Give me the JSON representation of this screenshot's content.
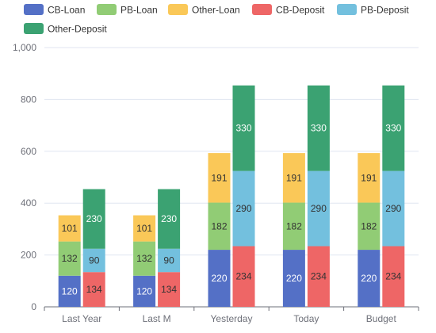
{
  "chart_data": {
    "type": "bar",
    "stacked": true,
    "categories": [
      "Last Year",
      "Last M",
      "Yesterday",
      "Today",
      "Budget"
    ],
    "stacks": [
      {
        "stack": "Loan",
        "series": [
          "CB-Loan",
          "PB-Loan",
          "Other-Loan"
        ]
      },
      {
        "stack": "Deposit",
        "series": [
          "CB-Deposit",
          "PB-Deposit",
          "Other-Deposit"
        ]
      }
    ],
    "series": [
      {
        "name": "CB-Loan",
        "stack": "Loan",
        "color": "#5470c6",
        "label_color": "#ffffff",
        "values": [
          120,
          120,
          220,
          220,
          220
        ]
      },
      {
        "name": "PB-Loan",
        "stack": "Loan",
        "color": "#91cc75",
        "label_color": "#333333",
        "values": [
          132,
          132,
          182,
          182,
          182
        ]
      },
      {
        "name": "Other-Loan",
        "stack": "Loan",
        "color": "#fac858",
        "label_color": "#333333",
        "values": [
          101,
          101,
          191,
          191,
          191
        ]
      },
      {
        "name": "CB-Deposit",
        "stack": "Deposit",
        "color": "#ee6666",
        "label_color": "#333333",
        "values": [
          134,
          134,
          234,
          234,
          234
        ]
      },
      {
        "name": "PB-Deposit",
        "stack": "Deposit",
        "color": "#73c0de",
        "label_color": "#333333",
        "values": [
          90,
          90,
          290,
          290,
          290
        ]
      },
      {
        "name": "Other-Deposit",
        "stack": "Deposit",
        "color": "#3ba272",
        "label_color": "#ffffff",
        "values": [
          230,
          230,
          330,
          330,
          330
        ]
      }
    ],
    "yaxis": {
      "min": 0,
      "max": 1000,
      "ticks": [
        "0",
        "200",
        "400",
        "600",
        "800",
        "1,000"
      ]
    },
    "grid": true,
    "legend_position": "top-left"
  }
}
